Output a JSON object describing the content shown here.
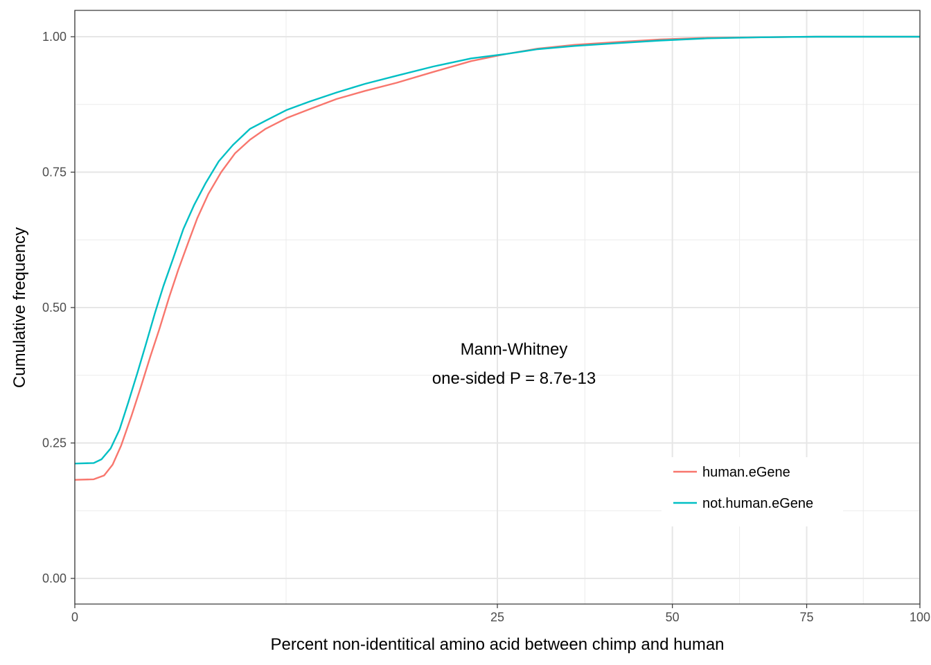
{
  "chart_data": {
    "type": "line",
    "xlabel": "Percent non-identitical amino acid between chimp and human",
    "ylabel": "Cumulative frequency",
    "x_scale": "sqrt",
    "xlim": [
      0,
      100
    ],
    "ylim": [
      0,
      1
    ],
    "x_ticks": [
      {
        "value": 0,
        "label": "0"
      },
      {
        "value": 25,
        "label": "25"
      },
      {
        "value": 50,
        "label": "50"
      },
      {
        "value": 75,
        "label": "75"
      },
      {
        "value": 100,
        "label": "100"
      }
    ],
    "y_ticks": [
      {
        "value": 0,
        "label": "0.00"
      },
      {
        "value": 0.25,
        "label": "0.25"
      },
      {
        "value": 0.5,
        "label": "0.50"
      },
      {
        "value": 0.75,
        "label": "0.75"
      },
      {
        "value": 1,
        "label": "1.00"
      }
    ],
    "grid": true,
    "legend_position": "bottom-right",
    "annotation": [
      "Mann-Whitney",
      "one-sided P = 8.7e-13"
    ],
    "series": [
      {
        "name": "human.eGene",
        "color": "#F8766D",
        "points": [
          [
            0,
            0.182
          ],
          [
            0.05,
            0.183
          ],
          [
            0.12,
            0.19
          ],
          [
            0.2,
            0.21
          ],
          [
            0.3,
            0.245
          ],
          [
            0.45,
            0.3
          ],
          [
            0.6,
            0.35
          ],
          [
            0.8,
            0.41
          ],
          [
            1.0,
            0.46
          ],
          [
            1.25,
            0.52
          ],
          [
            1.5,
            0.57
          ],
          [
            1.8,
            0.62
          ],
          [
            2.1,
            0.665
          ],
          [
            2.5,
            0.71
          ],
          [
            3.0,
            0.75
          ],
          [
            3.6,
            0.785
          ],
          [
            4.3,
            0.81
          ],
          [
            5.1,
            0.83
          ],
          [
            6.3,
            0.85
          ],
          [
            7.7,
            0.866
          ],
          [
            9.6,
            0.885
          ],
          [
            11.8,
            0.9
          ],
          [
            14.5,
            0.915
          ],
          [
            18.0,
            0.935
          ],
          [
            22.0,
            0.955
          ],
          [
            26.0,
            0.968
          ],
          [
            30.0,
            0.978
          ],
          [
            35.0,
            0.985
          ],
          [
            41.0,
            0.99
          ],
          [
            48.0,
            0.995
          ],
          [
            56.0,
            0.998
          ],
          [
            66.0,
            0.999
          ],
          [
            77.0,
            1.0
          ],
          [
            88.0,
            1.0
          ],
          [
            100.0,
            1.0
          ]
        ]
      },
      {
        "name": "not.human.eGene",
        "color": "#00BFC4",
        "points": [
          [
            0,
            0.212
          ],
          [
            0.05,
            0.213
          ],
          [
            0.1,
            0.22
          ],
          [
            0.18,
            0.24
          ],
          [
            0.28,
            0.275
          ],
          [
            0.4,
            0.325
          ],
          [
            0.55,
            0.38
          ],
          [
            0.7,
            0.43
          ],
          [
            0.9,
            0.49
          ],
          [
            1.1,
            0.54
          ],
          [
            1.35,
            0.59
          ],
          [
            1.65,
            0.645
          ],
          [
            2.0,
            0.69
          ],
          [
            2.4,
            0.73
          ],
          [
            2.9,
            0.77
          ],
          [
            3.5,
            0.8
          ],
          [
            4.3,
            0.83
          ],
          [
            5.1,
            0.845
          ],
          [
            6.3,
            0.865
          ],
          [
            7.7,
            0.88
          ],
          [
            9.6,
            0.897
          ],
          [
            11.8,
            0.913
          ],
          [
            14.5,
            0.928
          ],
          [
            18.0,
            0.945
          ],
          [
            22.0,
            0.96
          ],
          [
            26.0,
            0.968
          ],
          [
            30.0,
            0.977
          ],
          [
            35.0,
            0.983
          ],
          [
            41.0,
            0.988
          ],
          [
            48.0,
            0.993
          ],
          [
            56.0,
            0.997
          ],
          [
            66.0,
            0.999
          ],
          [
            77.0,
            1.0
          ],
          [
            88.0,
            1.0
          ],
          [
            100.0,
            1.0
          ]
        ]
      }
    ]
  }
}
